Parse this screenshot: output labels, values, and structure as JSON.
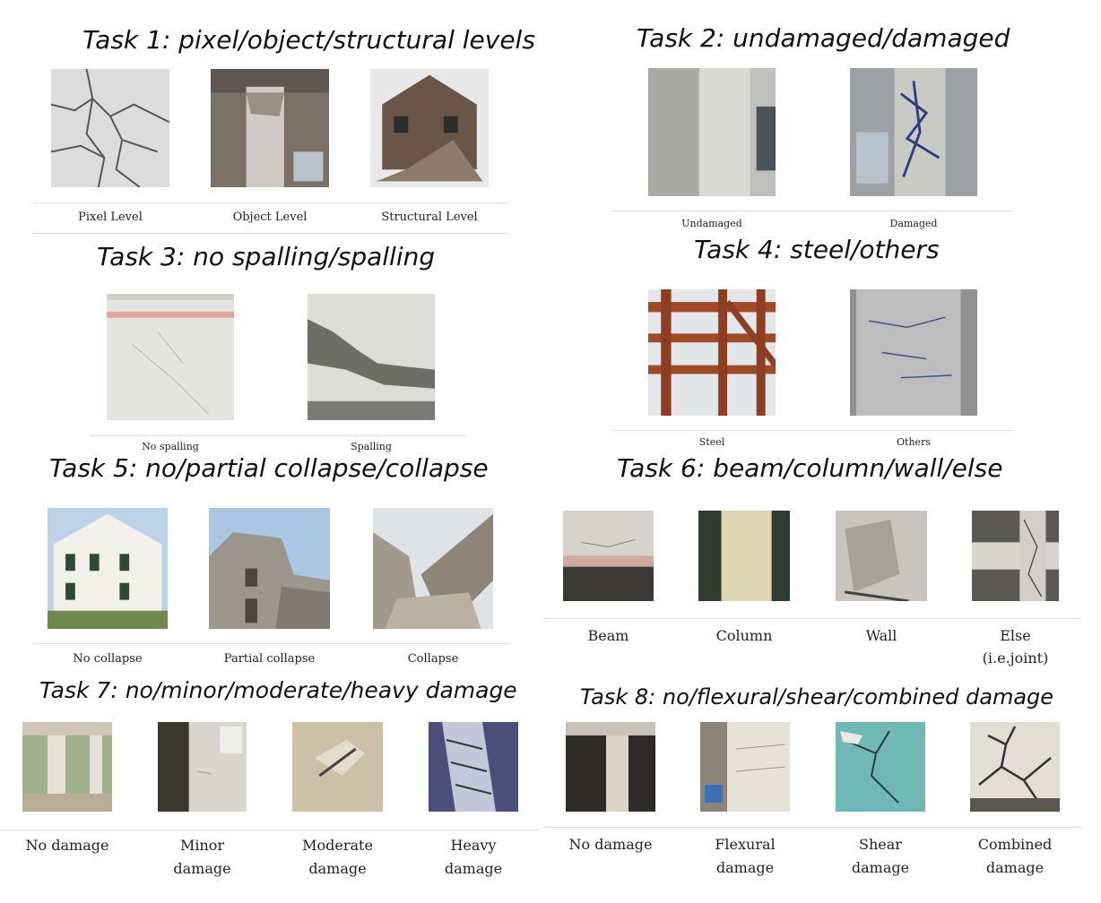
{
  "tasks": [
    {
      "title": "Task 1: pixel/object/structural levels",
      "labels": [
        "Pixel Level",
        "Object Level",
        "Structural Level"
      ]
    },
    {
      "title": "Task 2: undamaged/damaged",
      "labels": [
        "Undamaged",
        "Damaged"
      ]
    },
    {
      "title": "Task 3: no spalling/spalling",
      "labels": [
        "No spalling",
        "Spalling"
      ]
    },
    {
      "title": "Task 4: steel/others",
      "labels": [
        "Steel",
        "Others"
      ]
    },
    {
      "title": "Task 5: no/partial collapse/collapse",
      "labels": [
        "No collapse",
        "Partial collapse",
        "Collapse"
      ]
    },
    {
      "title": "Task 6: beam/column/wall/else",
      "labels": [
        "Beam",
        "Column",
        "Wall",
        "Else",
        "(i.e.joint)"
      ]
    },
    {
      "title": "Task 7: no/minor/moderate/heavy damage",
      "labels": [
        "No damage",
        "Minor",
        "damage",
        "Moderate",
        "damage",
        "Heavy",
        "damage"
      ]
    },
    {
      "title": "Task 8: no/flexural/shear/combined damage",
      "labels": [
        "No damage",
        "Flexural",
        "damage",
        "Shear",
        "damage",
        "Combined",
        "damage"
      ]
    }
  ],
  "colors": {
    "concrete": "#c9c9c7",
    "steel": "#a04a2a",
    "sky": "#cfdde8",
    "title": "#111111"
  }
}
